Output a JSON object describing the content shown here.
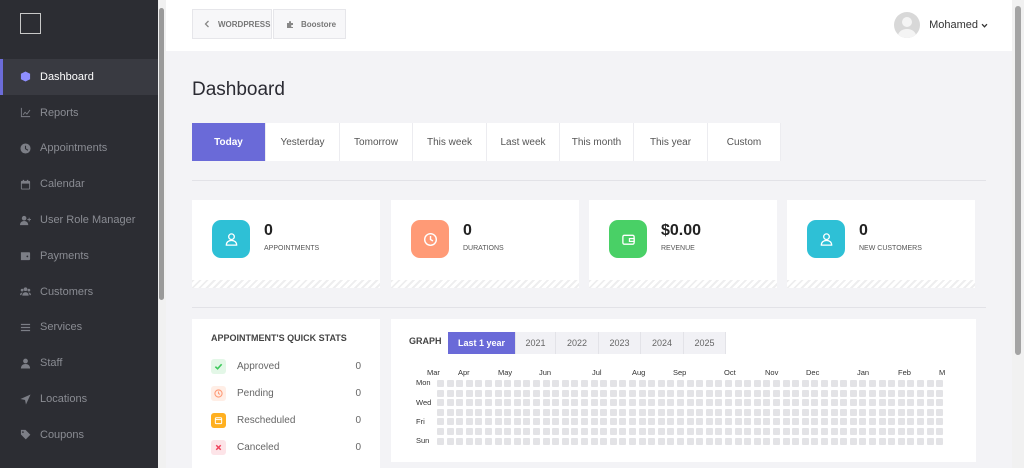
{
  "sidebar": {
    "items": [
      {
        "label": "Dashboard",
        "icon": "cube-icon",
        "active": true
      },
      {
        "label": "Reports",
        "icon": "chart-icon"
      },
      {
        "label": "Appointments",
        "icon": "clock-icon"
      },
      {
        "label": "Calendar",
        "icon": "calendar-icon"
      },
      {
        "label": "User Role Manager",
        "icon": "user-plus-icon"
      },
      {
        "label": "Payments",
        "icon": "wallet-icon"
      },
      {
        "label": "Customers",
        "icon": "users-icon"
      },
      {
        "label": "Services",
        "icon": "list-icon"
      },
      {
        "label": "Staff",
        "icon": "user-icon"
      },
      {
        "label": "Locations",
        "icon": "location-arrow-icon"
      },
      {
        "label": "Coupons",
        "icon": "tag-icon"
      }
    ]
  },
  "header": {
    "crumb_wp": "WORDPRESS",
    "crumb_app": "Boostore",
    "user_name": "Mohamed"
  },
  "page": {
    "title": "Dashboard"
  },
  "periods": [
    "Today",
    "Yesterday",
    "Tomorrow",
    "This week",
    "Last week",
    "This month",
    "This year",
    "Custom"
  ],
  "stats": [
    {
      "value": "0",
      "label": "APPOINTMENTS",
      "icon": "user-icon",
      "color": "#2ec0d6"
    },
    {
      "value": "0",
      "label": "DURATIONS",
      "icon": "clock-icon",
      "color": "#ff9a76"
    },
    {
      "value": "$0.00",
      "label": "REVENUE",
      "icon": "wallet-icon",
      "color": "#49d066"
    },
    {
      "value": "0",
      "label": "NEW CUSTOMERS",
      "icon": "user-icon",
      "color": "#2ec0d6"
    }
  ],
  "quick_stats": {
    "title": "APPOINTMENT'S QUICK STATS",
    "rows": [
      {
        "label": "Approved",
        "count": "0",
        "icon": "check-icon",
        "color": "#3ec95c",
        "bg": "#e3f7e7"
      },
      {
        "label": "Pending",
        "count": "0",
        "icon": "clock-icon",
        "color": "#ff9a76",
        "bg": "#ffeee6"
      },
      {
        "label": "Rescheduled",
        "count": "0",
        "icon": "calendar-icon",
        "color": "#ffffff",
        "bg": "#ffb020"
      },
      {
        "label": "Canceled",
        "count": "0",
        "icon": "close-icon",
        "color": "#f0405a",
        "bg": "#fde4e8"
      }
    ]
  },
  "graph": {
    "title": "GRAPH",
    "tabs": [
      "Last 1 year",
      "2021",
      "2022",
      "2023",
      "2024",
      "2025"
    ],
    "months": [
      "Mar",
      "Apr",
      "May",
      "Jun",
      "Jul",
      "Aug",
      "Sep",
      "Oct",
      "Nov",
      "Dec",
      "Jan",
      "Feb",
      "M"
    ],
    "days": [
      "Mon",
      "Wed",
      "Fri",
      "Sun"
    ]
  },
  "colors": {
    "accent": "#6a6ad8",
    "sidebar": "#2c2d33"
  }
}
